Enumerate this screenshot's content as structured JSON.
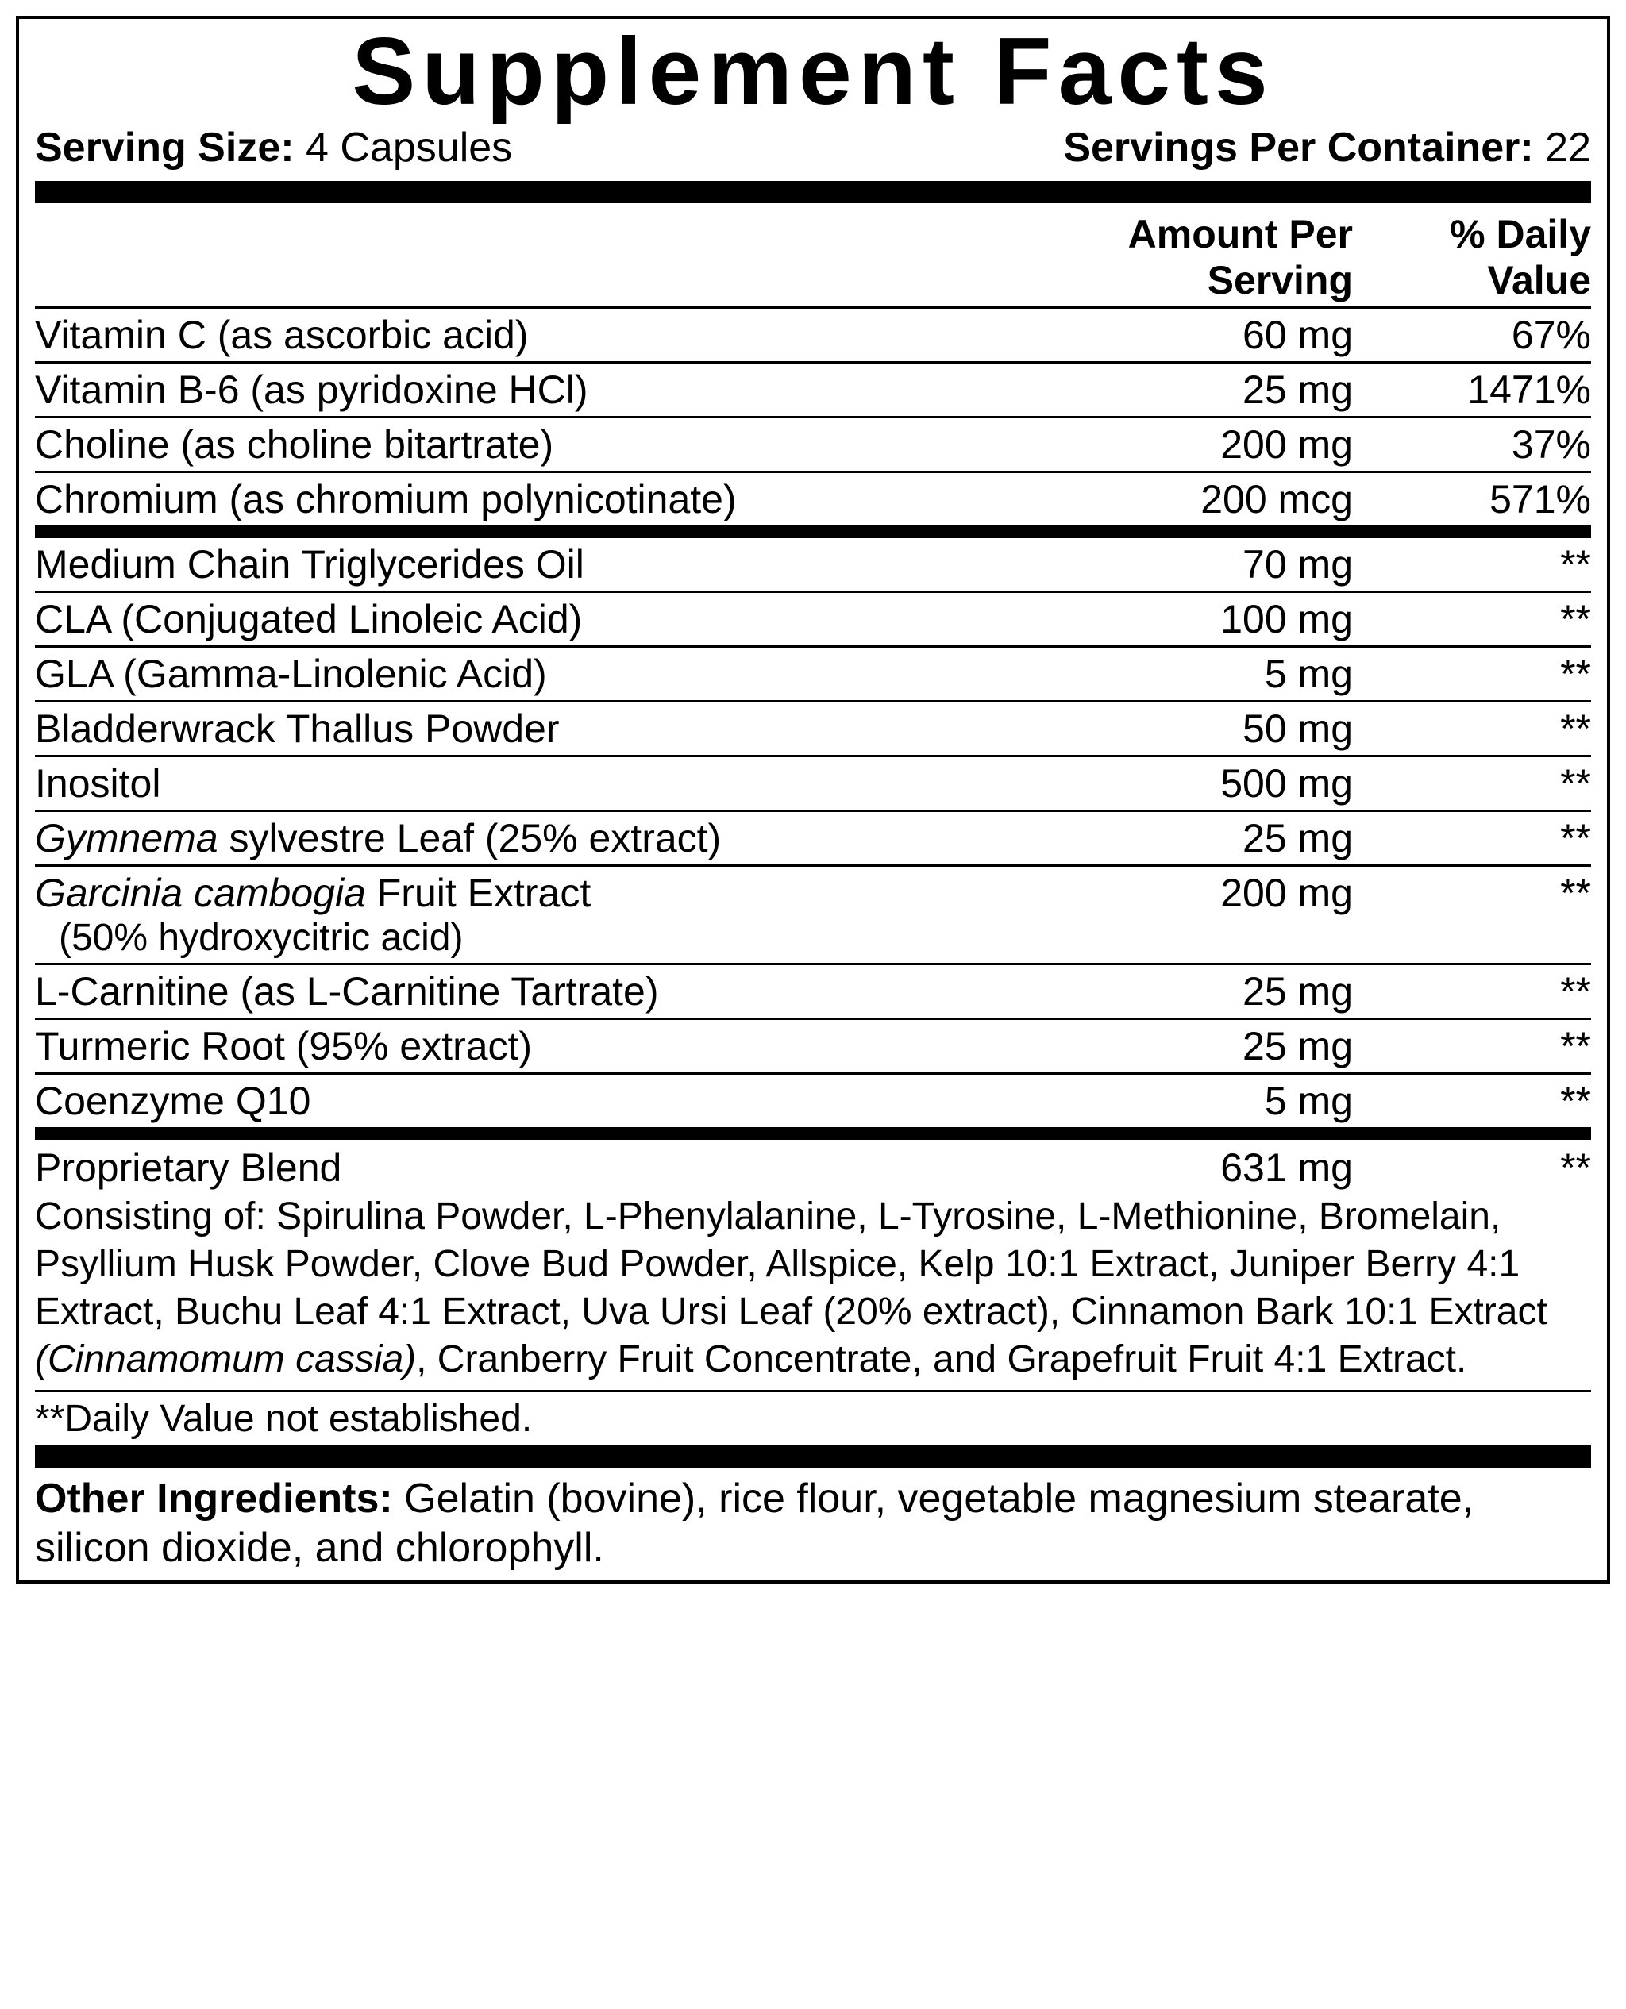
{
  "title": "Supplement Facts",
  "serving": {
    "size_label": "Serving Size:",
    "size_value": "4 Capsules",
    "per_container_label": "Servings Per Container:",
    "per_container_value": "22"
  },
  "headers": {
    "amount": "Amount Per Serving",
    "dv": "% Daily Value"
  },
  "section1": [
    {
      "name": "Vitamin C (as ascorbic acid)",
      "amt": "60 mg",
      "dv": "67%"
    },
    {
      "name": "Vitamin B-6 (as pyridoxine HCl)",
      "amt": "25 mg",
      "dv": "1471%"
    },
    {
      "name": "Choline (as choline bitartrate)",
      "amt": "200 mg",
      "dv": "37%"
    },
    {
      "name": "Chromium (as chromium polynicotinate)",
      "amt": "200 mcg",
      "dv": "571%"
    }
  ],
  "section2": [
    {
      "name": "Medium Chain Triglycerides Oil",
      "amt": "70 mg",
      "dv": "**"
    },
    {
      "name": "CLA (Conjugated Linoleic Acid)",
      "amt": "100 mg",
      "dv": "**"
    },
    {
      "name": "GLA (Gamma-Linolenic Acid)",
      "amt": "5 mg",
      "dv": "**"
    },
    {
      "name": "Bladderwrack Thallus Powder",
      "amt": "50 mg",
      "dv": "**"
    },
    {
      "name": "Inositol",
      "amt": "500 mg",
      "dv": "**"
    }
  ],
  "gymnema": {
    "ital": "Gymnema",
    "rest": " sylvestre Leaf (25% extract)",
    "amt": "25 mg",
    "dv": "**"
  },
  "garcinia": {
    "ital": "Garcinia cambogia",
    "rest": " Fruit Extract",
    "sub": "(50% hydroxycitric acid)",
    "amt": "200 mg",
    "dv": "**"
  },
  "section3": [
    {
      "name": "L-Carnitine (as L-Carnitine Tartrate)",
      "amt": "25 mg",
      "dv": "**"
    },
    {
      "name": "Turmeric Root (95% extract)",
      "amt": "25 mg",
      "dv": "**"
    },
    {
      "name": "Coenzyme Q10",
      "amt": "5 mg",
      "dv": "**"
    }
  ],
  "blend": {
    "name": "Proprietary Blend",
    "amt": "631 mg",
    "dv": "**",
    "desc_pre": "Consisting of: Spirulina Powder, L-Phenylalanine, L-Tyrosine, L-Methionine, Bromelain, Psyllium Husk Powder, Clove Bud Powder, Allspice, Kelp 10:1 Extract, Juniper Berry 4:1 Extract, Buchu Leaf 4:1 Extract, Uva Ursi Leaf (20% extract), Cinnamon Bark 10:1 Extract ",
    "desc_ital": "(Cinnamomum cassia)",
    "desc_post": ", Cranberry Fruit Concentrate, and Grapefruit Fruit 4:1 Extract."
  },
  "dv_note": "**Daily Value not established.",
  "other": {
    "label": "Other Ingredients: ",
    "text": "Gelatin (bovine), rice flour, vegetable magnesium stearate, silicon dioxide, and chlorophyll."
  }
}
